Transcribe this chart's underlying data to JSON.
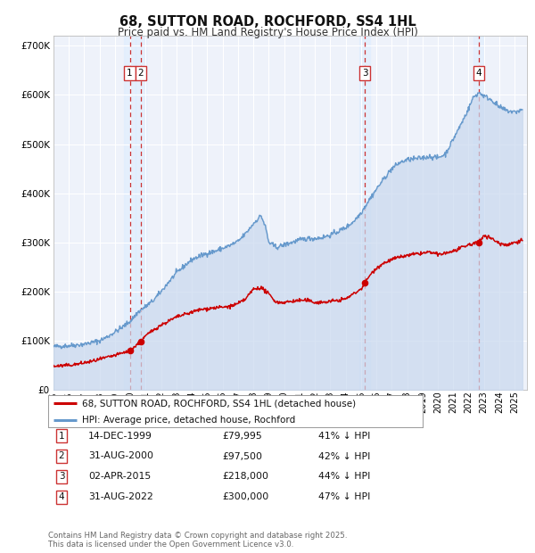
{
  "title": "68, SUTTON ROAD, ROCHFORD, SS4 1HL",
  "subtitle": "Price paid vs. HM Land Registry's House Price Index (HPI)",
  "bg_color": "#ffffff",
  "plot_bg_color": "#eef2fa",
  "grid_color": "#ffffff",
  "red_line_color": "#cc0000",
  "blue_line_color": "#6699cc",
  "blue_fill_color": "#c8d8ee",
  "ylim": [
    0,
    720000
  ],
  "yticks": [
    0,
    100000,
    200000,
    300000,
    400000,
    500000,
    600000,
    700000
  ],
  "ytick_labels": [
    "£0",
    "£100K",
    "£200K",
    "£300K",
    "£400K",
    "£500K",
    "£600K",
    "£700K"
  ],
  "sales": [
    {
      "num": 1,
      "date": "14-DEC-1999",
      "price": 79995,
      "pct": "41% ↓ HPI",
      "x_year": 1999.96
    },
    {
      "num": 2,
      "date": "31-AUG-2000",
      "price": 97500,
      "pct": "42% ↓ HPI",
      "x_year": 2000.67
    },
    {
      "num": 3,
      "date": "02-APR-2015",
      "price": 218000,
      "pct": "44% ↓ HPI",
      "x_year": 2015.25
    },
    {
      "num": 4,
      "date": "31-AUG-2022",
      "price": 300000,
      "pct": "47% ↓ HPI",
      "x_year": 2022.67
    }
  ],
  "legend_red_label": "68, SUTTON ROAD, ROCHFORD, SS4 1HL (detached house)",
  "legend_blue_label": "HPI: Average price, detached house, Rochford",
  "footer": "Contains HM Land Registry data © Crown copyright and database right 2025.\nThis data is licensed under the Open Government Licence v3.0.",
  "xmin": 1995.0,
  "xmax": 2025.8
}
